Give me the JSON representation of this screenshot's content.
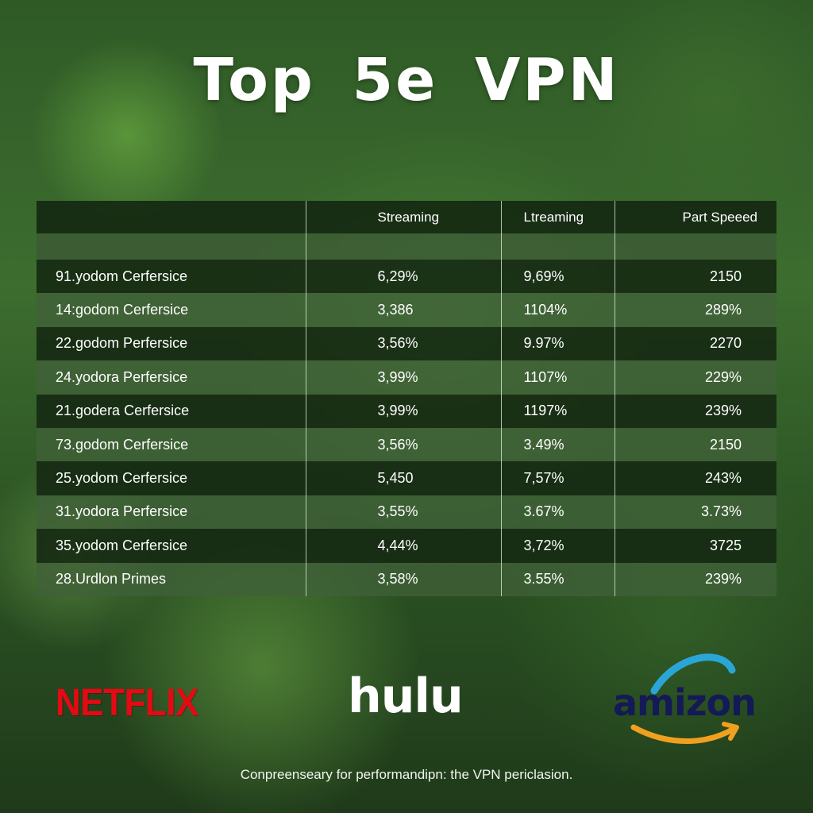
{
  "title": "Top  5e VPN",
  "table": {
    "headers": [
      "",
      "Streaming",
      "Ltreaming",
      "Part Speeed"
    ],
    "rows": [
      [
        "91.yodom Cerfersice",
        "6,29%",
        "9,69%",
        "2150"
      ],
      [
        "14:godom Cerfersice",
        "3,386",
        "1104%",
        "289%"
      ],
      [
        "22.godom Perfersice",
        "3,56%",
        "9.97%",
        "2270"
      ],
      [
        "24.yodora Perfersice",
        "3,99%",
        "1107%",
        "229%"
      ],
      [
        "21.godera Cerfersice",
        "3,99%",
        "1197%",
        "239%"
      ],
      [
        "73.godom Cerfersice",
        "3,56%",
        "3.49%",
        "2150"
      ],
      [
        "25.yodom Cerfersice",
        "5,450",
        "7,57%",
        "243%"
      ],
      [
        "31.yodora Perfersice",
        "3,55%",
        "3.67%",
        "3.73%"
      ],
      [
        "35.yodom Cerfersice",
        "4,44%",
        "3,72%",
        "3725"
      ],
      [
        "28.Urdlon Primes",
        "3,58%",
        "3.55%",
        "239%"
      ]
    ]
  },
  "logos": {
    "netflix": "NETFLIX",
    "hulu": "hulu",
    "amazon": "amizon"
  },
  "footer": "Conpreenseary for performandipn: the VPN periclasion.",
  "colors": {
    "netflix": "#e50914",
    "amazon_text": "#131a55",
    "amazon_arc": "#2aa6d6",
    "amazon_smile": "#f0a020"
  }
}
